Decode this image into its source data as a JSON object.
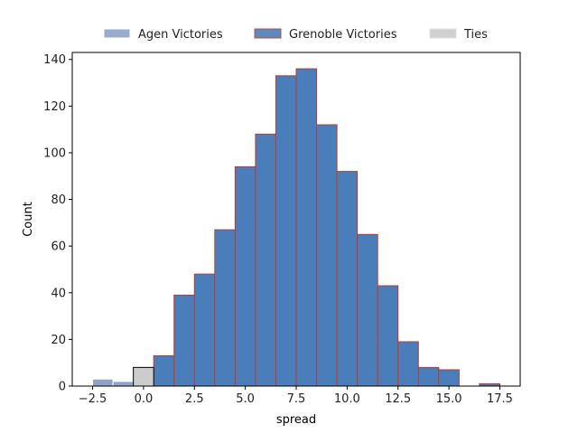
{
  "chart_data": {
    "type": "bar",
    "title": "",
    "xlabel": "spread",
    "ylabel": "Count",
    "xlim": [
      -3.5,
      18.5
    ],
    "ylim": [
      0,
      143
    ],
    "xticks": [
      -2.5,
      0.0,
      2.5,
      5.0,
      7.5,
      10.0,
      12.5,
      15.0,
      17.5
    ],
    "xtick_labels": [
      "−2.5",
      "0.0",
      "2.5",
      "5.0",
      "7.5",
      "10.0",
      "12.5",
      "15.0",
      "17.5"
    ],
    "yticks": [
      0,
      20,
      40,
      60,
      80,
      100,
      120,
      140
    ],
    "ytick_labels": [
      "0",
      "20",
      "40",
      "60",
      "80",
      "100",
      "120",
      "140"
    ],
    "grid": false,
    "legend_position": "top-center",
    "bin_width": 1,
    "series": [
      {
        "name": "Agen Victories",
        "color": "#8fa3c9",
        "edge_color": "#ffffff",
        "bins": [
          {
            "x": -2,
            "count": 3
          },
          {
            "x": -1,
            "count": 2
          }
        ]
      },
      {
        "name": "Grenoble Victories",
        "color": "#4a7ebb",
        "edge_color": "#c0392b",
        "bins": [
          {
            "x": 1,
            "count": 13
          },
          {
            "x": 2,
            "count": 39
          },
          {
            "x": 3,
            "count": 48
          },
          {
            "x": 4,
            "count": 67
          },
          {
            "x": 5,
            "count": 94
          },
          {
            "x": 6,
            "count": 108
          },
          {
            "x": 7,
            "count": 133
          },
          {
            "x": 8,
            "count": 136
          },
          {
            "x": 9,
            "count": 112
          },
          {
            "x": 10,
            "count": 92
          },
          {
            "x": 11,
            "count": 65
          },
          {
            "x": 12,
            "count": 43
          },
          {
            "x": 13,
            "count": 19
          },
          {
            "x": 14,
            "count": 8
          },
          {
            "x": 15,
            "count": 7
          },
          {
            "x": 17,
            "count": 1
          }
        ]
      },
      {
        "name": "Ties",
        "color": "#cccccc",
        "edge_color": "#000000",
        "bins": [
          {
            "x": 0,
            "count": 8
          }
        ]
      }
    ]
  }
}
